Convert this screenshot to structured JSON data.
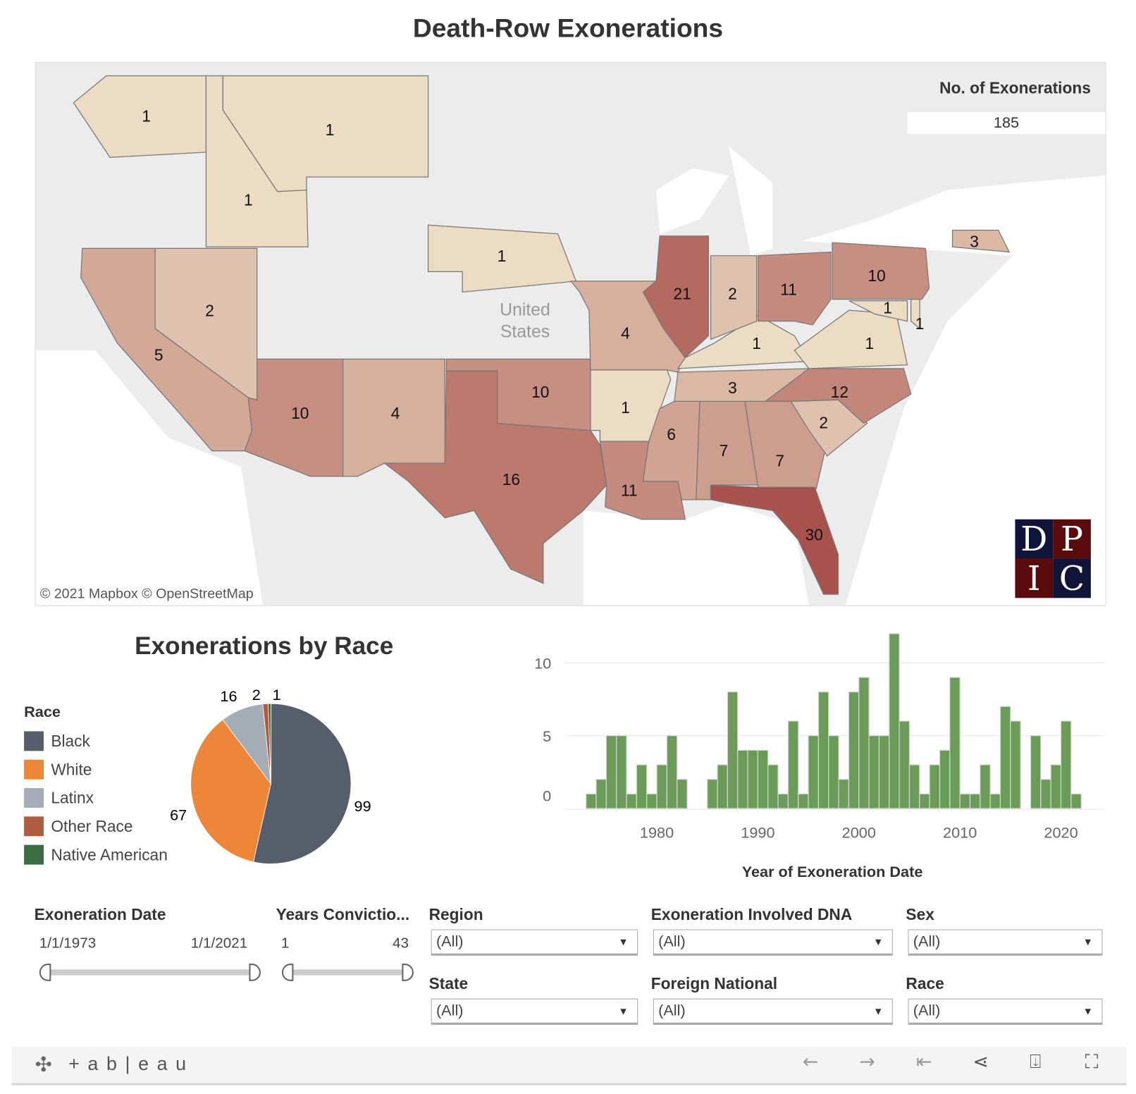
{
  "title": "Death-Row Exonerations",
  "map": {
    "legend_title": "No. of Exonerations",
    "total": "185",
    "country_label_1": "United",
    "country_label_2": "States",
    "attribution": "© 2021 Mapbox  © OpenStreetMap",
    "logo": [
      "D",
      "P",
      "I",
      "C"
    ],
    "color_low": "#ebdcc3",
    "color_high": "#a9524d",
    "states": {
      "WA": 1,
      "MT": 1,
      "ID": 1,
      "CA": 5,
      "NV": 2,
      "AZ": 10,
      "NM": 4,
      "TX": 16,
      "OK": 10,
      "NE": 1,
      "MO": 4,
      "AR": 1,
      "LA": 11,
      "MS": 6,
      "AL": 7,
      "GA": 7,
      "FL": 30,
      "SC": 2,
      "NC": 12,
      "TN": 3,
      "KY": 1,
      "VA": 1,
      "IL": 21,
      "IN": 2,
      "OH": 11,
      "PA": 10,
      "MD": 1,
      "DE": 1,
      "MA": 3
    }
  },
  "pie": {
    "title": "Exonerations by Race",
    "legend_title": "Race",
    "labels": {
      "Black": "99",
      "White": "67",
      "Latinx": "16",
      "Other Race": "2",
      "Native American": "1"
    }
  },
  "chart_data": [
    {
      "type": "pie",
      "title": "Exonerations by Race",
      "categories": [
        "Black",
        "White",
        "Latinx",
        "Other Race",
        "Native American"
      ],
      "values": [
        99,
        67,
        16,
        2,
        1
      ],
      "colors": [
        "#575e6b",
        "#ed8636",
        "#a4acb6",
        "#b05c3f",
        "#3c6d41"
      ],
      "legend": "left"
    },
    {
      "type": "bar",
      "xlabel": "Year of Exoneration Date",
      "ylabel": "",
      "x_ticks": [
        "1980",
        "1990",
        "2000",
        "2010",
        "2020"
      ],
      "y_ticks": [
        "0",
        "5",
        "10"
      ],
      "ylim": [
        0,
        12
      ],
      "grid": true,
      "color": "#6a9c58",
      "x": [
        1973,
        1974,
        1975,
        1976,
        1977,
        1978,
        1979,
        1980,
        1981,
        1982,
        1983,
        1984,
        1985,
        1986,
        1987,
        1988,
        1989,
        1990,
        1991,
        1992,
        1993,
        1994,
        1995,
        1996,
        1997,
        1998,
        1999,
        2000,
        2001,
        2002,
        2003,
        2004,
        2005,
        2006,
        2007,
        2008,
        2009,
        2010,
        2011,
        2012,
        2013,
        2014,
        2015,
        2016,
        2017,
        2018,
        2019,
        2020,
        2021
      ],
      "values": [
        1,
        2,
        5,
        5,
        1,
        3,
        1,
        3,
        5,
        2,
        0,
        0,
        2,
        3,
        8,
        4,
        4,
        4,
        3,
        1,
        6,
        1,
        5,
        8,
        5,
        2,
        8,
        9,
        5,
        5,
        12,
        6,
        3,
        1,
        3,
        4,
        9,
        1,
        1,
        3,
        1,
        7,
        6,
        0,
        5,
        2,
        3,
        6,
        1
      ]
    }
  ],
  "filters": {
    "exon_date": {
      "title": "Exoneration Date",
      "min": "1/1/1973",
      "max": "1/1/2021"
    },
    "years_conv": {
      "title": "Years Convictio...",
      "min": "1",
      "max": "43"
    },
    "region": {
      "title": "Region",
      "value": "(All)"
    },
    "state": {
      "title": "State",
      "value": "(All)"
    },
    "dna": {
      "title": "Exoneration Involved DNA",
      "value": "(All)"
    },
    "foreign": {
      "title": "Foreign National",
      "value": "(All)"
    },
    "sex": {
      "title": "Sex",
      "value": "(All)"
    },
    "race": {
      "title": "Race",
      "value": "(All)"
    }
  },
  "toolbar": {
    "brand": "+ a b | e a u"
  }
}
